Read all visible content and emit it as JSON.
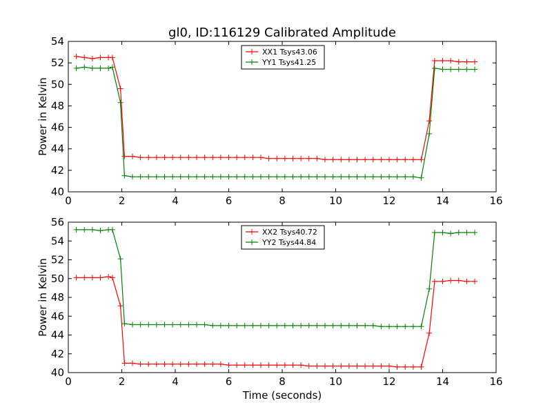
{
  "title": "gl0, ID:116129 Calibrated Amplitude",
  "xlabel": "Time (seconds)",
  "colors": {
    "XX": "#ff0000",
    "YY": "#008000"
  },
  "chart_data": [
    {
      "type": "line",
      "ylabel": "Power in Kelvin",
      "xlim": [
        0,
        16
      ],
      "ylim": [
        40,
        54
      ],
      "xticks": [
        0,
        2,
        4,
        6,
        8,
        10,
        12,
        14,
        16
      ],
      "yticks": [
        40,
        42,
        44,
        46,
        48,
        50,
        52,
        54
      ],
      "legend_position": "top-center",
      "series": [
        {
          "name": "XX1 Tsys43.06",
          "color": "#ff0000",
          "x": [
            0.3,
            0.6,
            0.9,
            1.2,
            1.5,
            1.65,
            1.95,
            2.1,
            2.4,
            2.7,
            3.0,
            3.3,
            3.6,
            3.9,
            4.2,
            4.5,
            4.8,
            5.1,
            5.4,
            5.7,
            6.0,
            6.3,
            6.6,
            6.9,
            7.2,
            7.5,
            7.8,
            8.1,
            8.4,
            8.7,
            9.0,
            9.3,
            9.6,
            9.9,
            10.2,
            10.5,
            10.8,
            11.1,
            11.4,
            11.7,
            12.0,
            12.3,
            12.6,
            12.9,
            13.2,
            13.5,
            13.7,
            14.0,
            14.3,
            14.6,
            14.9,
            15.2
          ],
          "y": [
            52.6,
            52.5,
            52.4,
            52.5,
            52.5,
            52.5,
            49.6,
            43.3,
            43.3,
            43.2,
            43.2,
            43.2,
            43.2,
            43.2,
            43.2,
            43.2,
            43.2,
            43.2,
            43.2,
            43.2,
            43.2,
            43.2,
            43.2,
            43.2,
            43.2,
            43.1,
            43.1,
            43.1,
            43.1,
            43.1,
            43.1,
            43.1,
            43.0,
            43.0,
            43.0,
            43.0,
            43.0,
            43.0,
            43.0,
            43.0,
            43.0,
            43.0,
            43.0,
            43.0,
            43.0,
            46.6,
            52.2,
            52.2,
            52.2,
            52.1,
            52.1,
            52.1
          ]
        },
        {
          "name": "YY1 Tsys41.25",
          "color": "#008000",
          "x": [
            0.3,
            0.6,
            0.9,
            1.2,
            1.5,
            1.65,
            1.95,
            2.1,
            2.4,
            2.7,
            3.0,
            3.3,
            3.6,
            3.9,
            4.2,
            4.5,
            4.8,
            5.1,
            5.4,
            5.7,
            6.0,
            6.3,
            6.6,
            6.9,
            7.2,
            7.5,
            7.8,
            8.1,
            8.4,
            8.7,
            9.0,
            9.3,
            9.6,
            9.9,
            10.2,
            10.5,
            10.8,
            11.1,
            11.4,
            11.7,
            12.0,
            12.3,
            12.6,
            12.9,
            13.2,
            13.5,
            13.7,
            14.0,
            14.3,
            14.6,
            14.9,
            15.2
          ],
          "y": [
            51.5,
            51.6,
            51.5,
            51.5,
            51.5,
            51.6,
            48.3,
            41.5,
            41.4,
            41.4,
            41.4,
            41.4,
            41.4,
            41.4,
            41.4,
            41.4,
            41.4,
            41.4,
            41.4,
            41.4,
            41.4,
            41.4,
            41.4,
            41.4,
            41.4,
            41.4,
            41.4,
            41.4,
            41.4,
            41.4,
            41.4,
            41.4,
            41.4,
            41.4,
            41.4,
            41.4,
            41.4,
            41.4,
            41.4,
            41.4,
            41.4,
            41.4,
            41.4,
            41.4,
            41.3,
            45.4,
            51.5,
            51.4,
            51.4,
            51.4,
            51.4,
            51.4
          ]
        }
      ]
    },
    {
      "type": "line",
      "ylabel": "Power in Kelvin",
      "xlabel": "Time (seconds)",
      "xlim": [
        0,
        16
      ],
      "ylim": [
        40,
        56
      ],
      "xticks": [
        0,
        2,
        4,
        6,
        8,
        10,
        12,
        14,
        16
      ],
      "yticks": [
        40,
        42,
        44,
        46,
        48,
        50,
        52,
        54,
        56
      ],
      "legend_position": "top-center",
      "series": [
        {
          "name": "XX2 Tsys40.72",
          "color": "#ff0000",
          "x": [
            0.3,
            0.6,
            0.9,
            1.2,
            1.5,
            1.65,
            1.95,
            2.1,
            2.4,
            2.7,
            3.0,
            3.3,
            3.6,
            3.9,
            4.2,
            4.5,
            4.8,
            5.1,
            5.4,
            5.7,
            6.0,
            6.3,
            6.6,
            6.9,
            7.2,
            7.5,
            7.8,
            8.1,
            8.4,
            8.7,
            9.0,
            9.3,
            9.6,
            9.9,
            10.2,
            10.5,
            10.8,
            11.1,
            11.4,
            11.7,
            12.0,
            12.3,
            12.6,
            12.9,
            13.2,
            13.5,
            13.7,
            14.0,
            14.3,
            14.6,
            14.9,
            15.2
          ],
          "y": [
            50.1,
            50.1,
            50.1,
            50.1,
            50.2,
            50.1,
            47.1,
            41.0,
            41.0,
            40.9,
            40.9,
            40.9,
            40.9,
            40.9,
            40.9,
            40.9,
            40.9,
            40.9,
            40.9,
            40.9,
            40.8,
            40.8,
            40.8,
            40.8,
            40.8,
            40.8,
            40.8,
            40.8,
            40.8,
            40.8,
            40.7,
            40.7,
            40.7,
            40.7,
            40.7,
            40.7,
            40.7,
            40.7,
            40.7,
            40.7,
            40.7,
            40.6,
            40.6,
            40.6,
            40.6,
            44.2,
            49.7,
            49.7,
            49.8,
            49.8,
            49.7,
            49.7
          ]
        },
        {
          "name": "YY2 Tsys44.84",
          "color": "#008000",
          "x": [
            0.3,
            0.6,
            0.9,
            1.2,
            1.5,
            1.65,
            1.95,
            2.1,
            2.4,
            2.7,
            3.0,
            3.3,
            3.6,
            3.9,
            4.2,
            4.5,
            4.8,
            5.1,
            5.4,
            5.7,
            6.0,
            6.3,
            6.6,
            6.9,
            7.2,
            7.5,
            7.8,
            8.1,
            8.4,
            8.7,
            9.0,
            9.3,
            9.6,
            9.9,
            10.2,
            10.5,
            10.8,
            11.1,
            11.4,
            11.7,
            12.0,
            12.3,
            12.6,
            12.9,
            13.2,
            13.5,
            13.7,
            14.0,
            14.3,
            14.6,
            14.9,
            15.2
          ],
          "y": [
            55.2,
            55.2,
            55.2,
            55.1,
            55.2,
            55.2,
            52.1,
            45.2,
            45.1,
            45.1,
            45.1,
            45.1,
            45.1,
            45.1,
            45.1,
            45.1,
            45.1,
            45.1,
            45.0,
            45.0,
            45.0,
            45.0,
            45.0,
            45.0,
            45.0,
            45.0,
            45.0,
            45.0,
            45.0,
            45.0,
            45.0,
            45.0,
            45.0,
            45.0,
            45.0,
            45.0,
            45.0,
            45.0,
            45.0,
            44.9,
            44.9,
            44.9,
            44.9,
            44.9,
            44.9,
            48.9,
            54.9,
            54.9,
            54.8,
            54.9,
            54.9,
            54.9
          ]
        }
      ]
    }
  ]
}
